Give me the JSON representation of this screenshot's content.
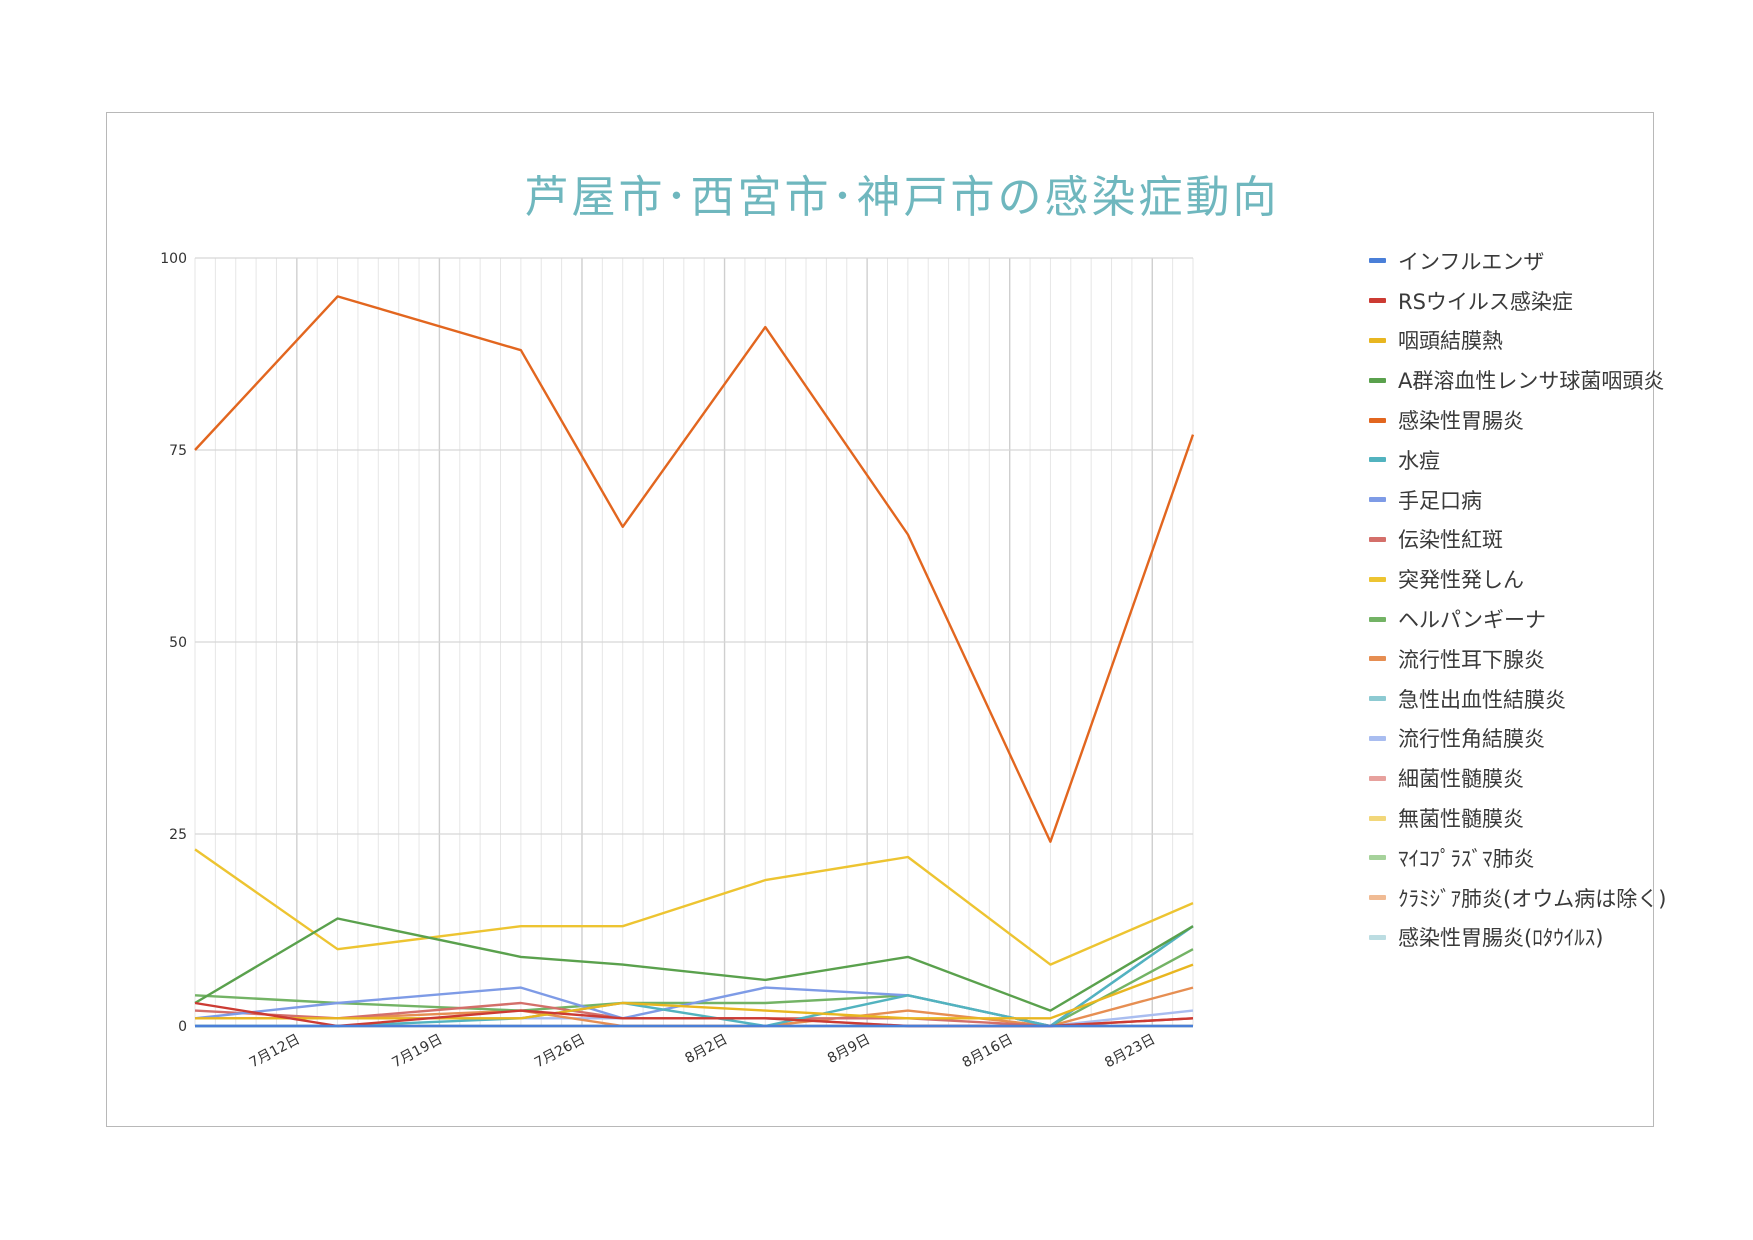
{
  "chart_data": {
    "type": "line",
    "title": "芦屋市･西宮市･神戸市の感染症動向",
    "xlabel": "",
    "ylabel": "",
    "ylim": [
      0,
      100
    ],
    "y_ticks": [
      0,
      25,
      50,
      75,
      100
    ],
    "x": [
      "2021-07-07",
      "2021-07-14",
      "2021-07-23",
      "2021-07-28",
      "2021-08-04",
      "2021-08-11",
      "2021-08-18",
      "2021-08-25"
    ],
    "x_ticks": [
      {
        "date": "2021-07-12",
        "label": "7月12日"
      },
      {
        "date": "2021-07-19",
        "label": "7月19日"
      },
      {
        "date": "2021-07-26",
        "label": "7月26日"
      },
      {
        "date": "2021-08-02",
        "label": "8月2日"
      },
      {
        "date": "2021-08-09",
        "label": "8月9日"
      },
      {
        "date": "2021-08-16",
        "label": "8月16日"
      },
      {
        "date": "2021-08-23",
        "label": "8月23日"
      }
    ],
    "grid": true,
    "legend_position": "right",
    "series": [
      {
        "name": "インフルエンザ",
        "color": "#4a7fd8",
        "values": [
          0,
          0,
          0,
          0,
          0,
          0,
          0,
          0
        ]
      },
      {
        "name": "RSウイルス感染症",
        "color": "#cc3b33",
        "values": [
          3,
          0,
          2,
          1,
          1,
          0,
          0,
          1
        ]
      },
      {
        "name": "咽頭結膜熱",
        "color": "#e8b620",
        "values": [
          1,
          1,
          1,
          3,
          2,
          1,
          1,
          8
        ]
      },
      {
        "name": "A群溶血性レンサ球菌咽頭炎",
        "color": "#5aa14d",
        "values": [
          3,
          14,
          9,
          8,
          6,
          9,
          2,
          13
        ]
      },
      {
        "name": "感染性胃腸炎",
        "color": "#e2661f",
        "values": [
          75,
          95,
          88,
          65,
          91,
          64,
          24,
          77
        ]
      },
      {
        "name": "水痘",
        "color": "#52b3bf",
        "values": [
          0,
          0,
          1,
          3,
          0,
          4,
          0,
          13
        ]
      },
      {
        "name": "手足口病",
        "color": "#7e9be6",
        "values": [
          1,
          3,
          5,
          1,
          5,
          4,
          0,
          13
        ]
      },
      {
        "name": "伝染性紅斑",
        "color": "#d46f6a",
        "values": [
          2,
          1,
          3,
          1,
          1,
          1,
          0,
          1
        ]
      },
      {
        "name": "突発性発しん",
        "color": "#edc431",
        "values": [
          23,
          10,
          13,
          13,
          19,
          22,
          8,
          16
        ]
      },
      {
        "name": "ヘルパンギーナ",
        "color": "#73b365",
        "values": [
          4,
          3,
          2,
          3,
          3,
          4,
          0,
          10
        ]
      },
      {
        "name": "流行性耳下腺炎",
        "color": "#e68e52",
        "values": [
          1,
          1,
          2,
          0,
          0,
          2,
          0,
          5
        ]
      },
      {
        "name": "急性出血性結膜炎",
        "color": "#8dcad2",
        "values": [
          0,
          0,
          0,
          0,
          0,
          0,
          0,
          0
        ]
      },
      {
        "name": "流行性角結膜炎",
        "color": "#a9bdf0",
        "values": [
          1,
          1,
          1,
          1,
          1,
          0,
          0,
          2
        ]
      },
      {
        "name": "細菌性髄膜炎",
        "color": "#e7a19d",
        "values": [
          0,
          0,
          0,
          0,
          0,
          0,
          0,
          0
        ]
      },
      {
        "name": "無菌性髄膜炎",
        "color": "#f2d77a",
        "values": [
          0,
          0,
          0,
          0,
          0,
          0,
          0,
          0
        ]
      },
      {
        "name": "ﾏｲｺﾌﾟﾗｽﾞﾏ肺炎",
        "color": "#a6d29b",
        "values": [
          0,
          0,
          0,
          0,
          0,
          0,
          0,
          0
        ]
      },
      {
        "name": "ｸﾗﾐｼﾞｱ肺炎(オウム病は除く)",
        "color": "#f0bb94",
        "values": [
          0,
          0,
          0,
          0,
          0,
          0,
          0,
          0
        ]
      },
      {
        "name": "感染性胃腸炎(ﾛﾀｳｲﾙｽ)",
        "color": "#bcdde2",
        "values": [
          0,
          0,
          0,
          0,
          0,
          0,
          0,
          0
        ]
      }
    ]
  }
}
